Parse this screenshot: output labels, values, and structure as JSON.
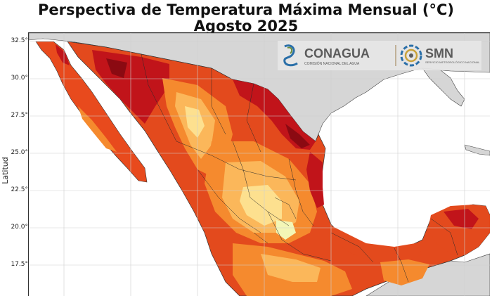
{
  "title": {
    "line1": "Perspectiva de Temperatura Máxima Mensual (°C)",
    "line2": "Agosto 2025"
  },
  "axis": {
    "ylabel": "Latitud",
    "yticks": [
      "32.5°",
      "30.0°",
      "27.5°",
      "25.0°",
      "22.5°",
      "20.0°",
      "17.5°"
    ]
  },
  "logos": {
    "conagua_name": "CONAGUA",
    "conagua_sub": "COMISIÓN NACIONAL DEL AGUA",
    "smn_name": "SMN",
    "smn_sub": "SERVICIO METEOROLÓGICO NACIONAL"
  },
  "colors": {
    "land": "#d9d9d9",
    "sea": "#ffffff",
    "hot_dark": "#8b0a12",
    "hot": "#c1141a",
    "warm": "#e34a1d",
    "mild": "#f58a2e",
    "cool": "#fbb75a",
    "cooler": "#fde08f",
    "coolest": "#f3f6b6"
  }
}
